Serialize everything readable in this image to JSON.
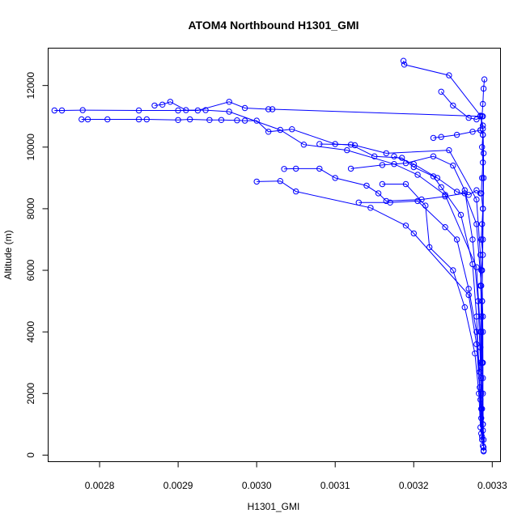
{
  "chart_data": {
    "type": "line",
    "title": "ATOM4 Northbound H1301_GMI",
    "xlabel": "H1301_GMI",
    "ylabel": "Altitude (m)",
    "xlim": [
      0.002735,
      0.00331
    ],
    "ylim": [
      -200,
      13200
    ],
    "grid": false,
    "legend": "none",
    "color": "#0000ff",
    "x_ticks": [
      {
        "value": 0.0028,
        "label": "0.0028"
      },
      {
        "value": 0.0029,
        "label": "0.0029"
      },
      {
        "value": 0.003,
        "label": "0.0030"
      },
      {
        "value": 0.0031,
        "label": "0.0031"
      },
      {
        "value": 0.0032,
        "label": "0.0032"
      },
      {
        "value": 0.0033,
        "label": "0.0033"
      }
    ],
    "y_ticks": [
      {
        "value": 0,
        "label": "0"
      },
      {
        "value": 2000,
        "label": "2000"
      },
      {
        "value": 4000,
        "label": "4000"
      },
      {
        "value": 6000,
        "label": "6000"
      },
      {
        "value": 8000,
        "label": "8000"
      },
      {
        "value": 10000,
        "label": "10000"
      },
      {
        "value": 12000,
        "label": "12000"
      }
    ],
    "series": [
      {
        "points": [
          [
            0.0027425,
            11190
          ],
          [
            0.002752,
            11190
          ],
          [
            0.0027785,
            11200
          ],
          [
            0.00285,
            11190
          ],
          [
            0.0029,
            11190
          ],
          [
            0.002925,
            11190
          ],
          [
            0.002965,
            11470
          ],
          [
            0.002985,
            11270
          ],
          [
            0.003015,
            11230
          ],
          [
            0.00302,
            11230
          ],
          [
            0.003285,
            11000
          ],
          [
            0.003288,
            10600
          ],
          [
            0.003289,
            9000
          ],
          [
            0.003288,
            7000
          ],
          [
            0.003287,
            5000
          ],
          [
            0.003288,
            3000
          ],
          [
            0.003288,
            1000
          ],
          [
            0.003289,
            150
          ]
        ]
      },
      {
        "points": [
          [
            0.002777,
            10900
          ],
          [
            0.002785,
            10900
          ],
          [
            0.00281,
            10900
          ],
          [
            0.00285,
            10900
          ],
          [
            0.00286,
            10900
          ],
          [
            0.0029,
            10880
          ],
          [
            0.002915,
            10900
          ],
          [
            0.00294,
            10880
          ],
          [
            0.002955,
            10880
          ],
          [
            0.002975,
            10870
          ],
          [
            0.002985,
            10860
          ],
          [
            0.003,
            10860
          ],
          [
            0.003015,
            10500
          ],
          [
            0.003045,
            10580
          ],
          [
            0.0031,
            10100
          ],
          [
            0.003125,
            10060
          ],
          [
            0.003165,
            9800
          ],
          [
            0.003245,
            9900
          ],
          [
            0.00328,
            8300
          ],
          [
            0.003285,
            6500
          ],
          [
            0.003286,
            4500
          ],
          [
            0.003286,
            2500
          ],
          [
            0.003287,
            600
          ]
        ]
      },
      {
        "points": [
          [
            0.00287,
            11350
          ],
          [
            0.00288,
            11380
          ],
          [
            0.00289,
            11470
          ],
          [
            0.00291,
            11200
          ],
          [
            0.002935,
            11200
          ],
          [
            0.002965,
            11150
          ],
          [
            0.00303,
            10560
          ],
          [
            0.00306,
            10080
          ],
          [
            0.003115,
            9900
          ],
          [
            0.003175,
            9450
          ],
          [
            0.003205,
            9100
          ],
          [
            0.00324,
            8450
          ],
          [
            0.00328,
            6100
          ],
          [
            0.003285,
            4000
          ],
          [
            0.003286,
            1500
          ],
          [
            0.003288,
            300
          ]
        ]
      },
      {
        "points": [
          [
            0.003,
            8880
          ],
          [
            0.00303,
            8900
          ],
          [
            0.00305,
            8560
          ],
          [
            0.003145,
            8030
          ],
          [
            0.00319,
            7450
          ],
          [
            0.0032,
            7200
          ],
          [
            0.00327,
            5200
          ],
          [
            0.00328,
            3600
          ],
          [
            0.003285,
            1800
          ],
          [
            0.003287,
            500
          ]
        ]
      },
      {
        "points": [
          [
            0.003035,
            9290
          ],
          [
            0.00305,
            9300
          ],
          [
            0.00308,
            9300
          ],
          [
            0.0031,
            9000
          ],
          [
            0.00314,
            8750
          ],
          [
            0.003155,
            8500
          ],
          [
            0.003165,
            8250
          ],
          [
            0.00321,
            8300
          ],
          [
            0.00324,
            8400
          ],
          [
            0.003265,
            8500
          ],
          [
            0.00328,
            7500
          ],
          [
            0.003286,
            5500
          ],
          [
            0.003287,
            3000
          ],
          [
            0.003288,
            800
          ]
        ]
      },
      {
        "points": [
          [
            0.003187,
            12800
          ],
          [
            0.003188,
            12680
          ],
          [
            0.003245,
            12330
          ],
          [
            0.003285,
            11020
          ],
          [
            0.003288,
            10700
          ],
          [
            0.003289,
            9800
          ],
          [
            0.003288,
            8000
          ],
          [
            0.003287,
            6000
          ],
          [
            0.003288,
            4000
          ],
          [
            0.003288,
            2000
          ],
          [
            0.003289,
            250
          ]
        ]
      },
      {
        "points": [
          [
            0.00329,
            12200
          ],
          [
            0.003289,
            11900
          ],
          [
            0.003288,
            11400
          ],
          [
            0.003287,
            11000
          ],
          [
            0.003285,
            10550
          ],
          [
            0.003288,
            10400
          ],
          [
            0.003287,
            10000
          ],
          [
            0.003288,
            9500
          ],
          [
            0.003287,
            9000
          ],
          [
            0.003286,
            8500
          ],
          [
            0.003288,
            8000
          ],
          [
            0.003287,
            7500
          ],
          [
            0.003286,
            7000
          ],
          [
            0.003288,
            6500
          ],
          [
            0.003286,
            6000
          ],
          [
            0.003285,
            5500
          ],
          [
            0.003287,
            5000
          ],
          [
            0.003288,
            4500
          ],
          [
            0.003286,
            4000
          ],
          [
            0.003285,
            3500
          ],
          [
            0.003287,
            3000
          ],
          [
            0.003288,
            2500
          ],
          [
            0.003286,
            2000
          ],
          [
            0.003287,
            1500
          ],
          [
            0.003288,
            1000
          ],
          [
            0.003289,
            500
          ],
          [
            0.003289,
            120
          ]
        ]
      },
      {
        "points": [
          [
            0.00312,
            9300
          ],
          [
            0.00316,
            9420
          ],
          [
            0.00319,
            9480
          ],
          [
            0.003225,
            9700
          ],
          [
            0.00325,
            9400
          ],
          [
            0.003265,
            8600
          ],
          [
            0.003275,
            7000
          ],
          [
            0.003282,
            5000
          ],
          [
            0.003285,
            3000
          ],
          [
            0.003286,
            1200
          ]
        ]
      },
      {
        "points": [
          [
            0.00308,
            10100
          ],
          [
            0.00312,
            10080
          ],
          [
            0.00315,
            9700
          ],
          [
            0.003185,
            9650
          ],
          [
            0.0032,
            9350
          ],
          [
            0.003225,
            9050
          ],
          [
            0.003235,
            8700
          ],
          [
            0.00326,
            7800
          ],
          [
            0.003275,
            6200
          ],
          [
            0.00328,
            4500
          ],
          [
            0.003284,
            2200
          ],
          [
            0.003286,
            700
          ]
        ]
      },
      {
        "points": [
          [
            0.00316,
            8800
          ],
          [
            0.00319,
            8800
          ],
          [
            0.003215,
            8100
          ],
          [
            0.00322,
            6750
          ],
          [
            0.00325,
            6000
          ],
          [
            0.003265,
            4800
          ],
          [
            0.003278,
            3300
          ],
          [
            0.003283,
            2000
          ],
          [
            0.003285,
            900
          ]
        ]
      },
      {
        "points": [
          [
            0.00313,
            8200
          ],
          [
            0.00317,
            8200
          ],
          [
            0.003205,
            8250
          ],
          [
            0.00324,
            7400
          ],
          [
            0.003255,
            7000
          ],
          [
            0.00327,
            5400
          ],
          [
            0.00328,
            4000
          ],
          [
            0.003284,
            2700
          ]
        ]
      },
      {
        "points": [
          [
            0.003225,
            10300
          ],
          [
            0.003235,
            10330
          ],
          [
            0.003255,
            10400
          ],
          [
            0.003275,
            10500
          ],
          [
            0.003285,
            10550
          ],
          [
            0.003288,
            10400
          ]
        ]
      },
      {
        "points": [
          [
            0.003235,
            11800
          ],
          [
            0.00325,
            11350
          ],
          [
            0.00327,
            10950
          ],
          [
            0.00328,
            10900
          ],
          [
            0.003288,
            11000
          ]
        ]
      },
      {
        "points": [
          [
            0.003175,
            9700
          ],
          [
            0.0032,
            9450
          ],
          [
            0.00323,
            9000
          ],
          [
            0.003255,
            8550
          ],
          [
            0.00327,
            8450
          ],
          [
            0.00328,
            8600
          ],
          [
            0.003285,
            8500
          ]
        ]
      }
    ]
  }
}
